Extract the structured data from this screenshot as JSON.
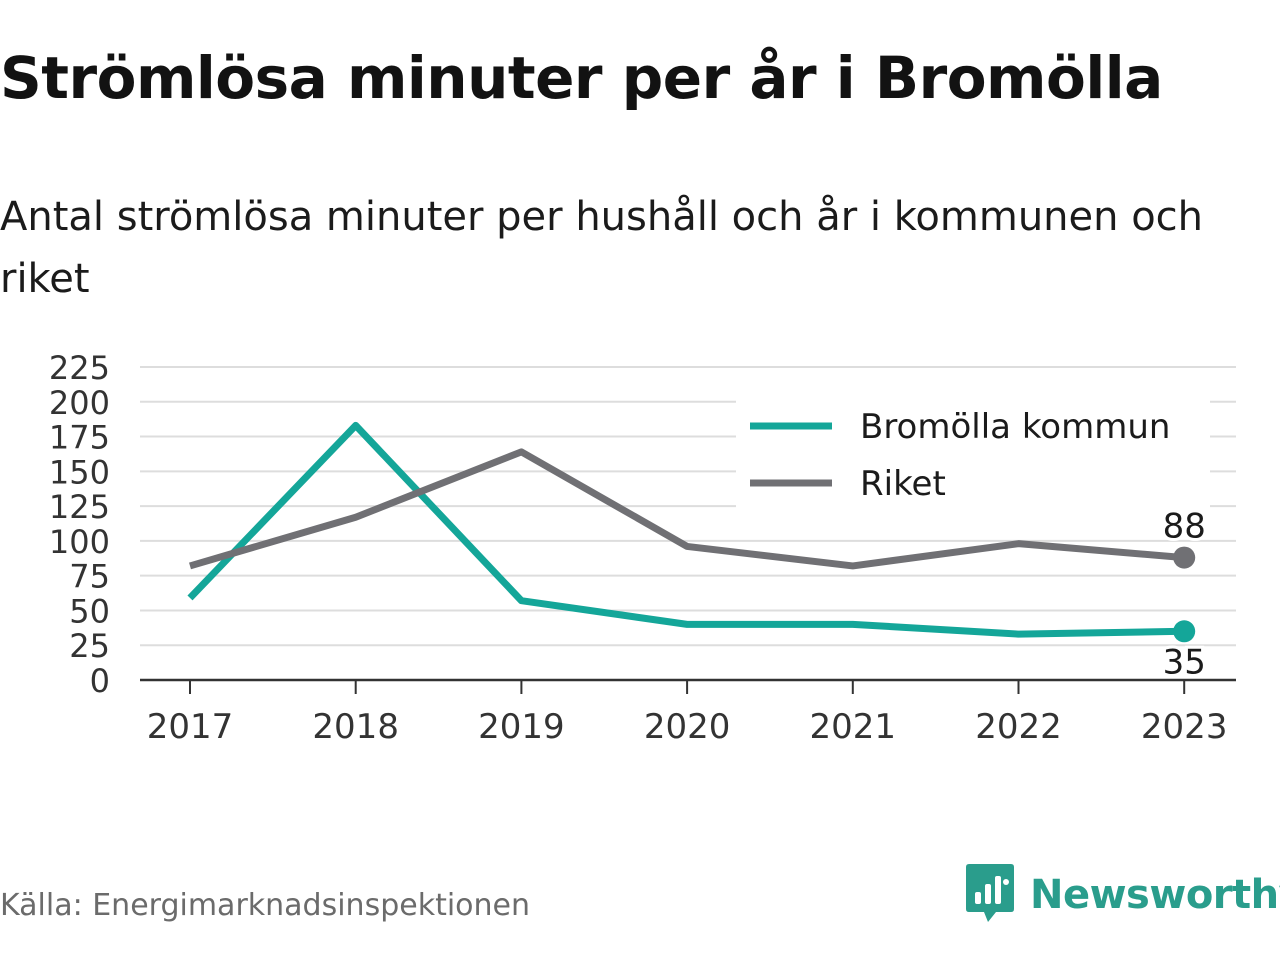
{
  "header": {
    "title": "Strömlösa minuter per år i Bromölla",
    "subtitle": "Antal strömlösa minuter per hushåll och år i kommunen och riket"
  },
  "footer": {
    "source": "Källa: Energimarknadsinspektionen",
    "brand": "Newsworthy"
  },
  "colors": {
    "series_kommun": "#14a699",
    "series_riket": "#707074",
    "grid": "#dddddd",
    "axis": "#333333",
    "brand": "#2a9d8c"
  },
  "icons": {
    "brand_logo": "newsworthy-logo-icon"
  },
  "chart_data": {
    "type": "line",
    "title": "",
    "xlabel": "",
    "ylabel": "",
    "x": [
      "2017",
      "2018",
      "2019",
      "2020",
      "2021",
      "2022",
      "2023"
    ],
    "ylim": [
      0,
      225
    ],
    "yticks": [
      0,
      25,
      50,
      75,
      100,
      125,
      150,
      175,
      200,
      225
    ],
    "grid": true,
    "legend": "top-right",
    "series": [
      {
        "name": "Bromölla kommun",
        "values": [
          59,
          183,
          57,
          40,
          40,
          33,
          35
        ],
        "color": "#14a699",
        "end_label": "35"
      },
      {
        "name": "Riket",
        "values": [
          82,
          117,
          164,
          96,
          82,
          98,
          88
        ],
        "color": "#707074",
        "end_label": "88"
      }
    ]
  }
}
